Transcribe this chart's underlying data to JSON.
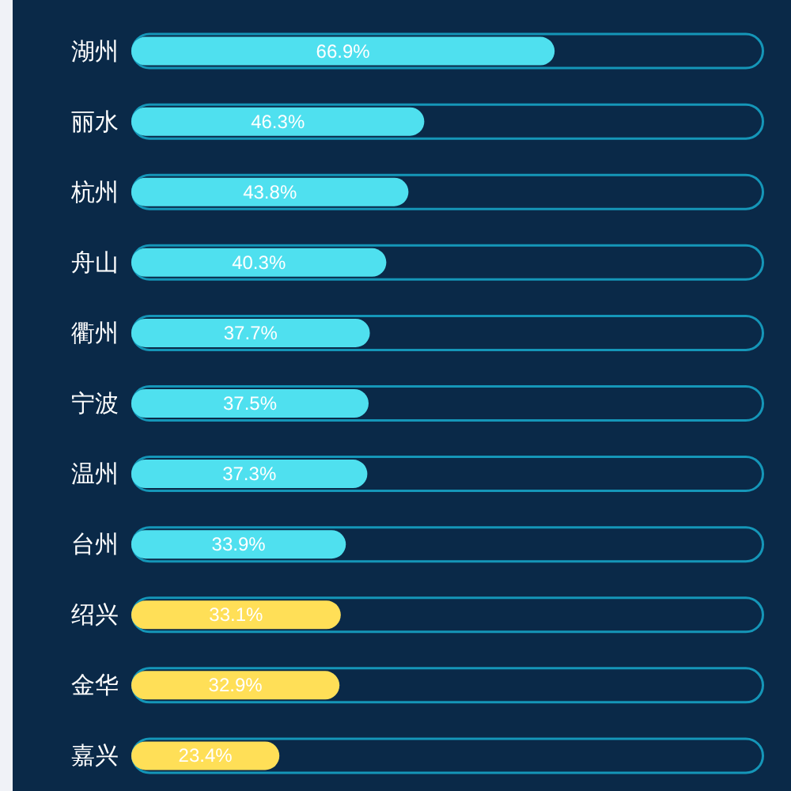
{
  "chart_data": {
    "type": "bar",
    "orientation": "horizontal",
    "categories": [
      "湖州",
      "丽水",
      "杭州",
      "舟山",
      "衢州",
      "宁波",
      "温州",
      "台州",
      "绍兴",
      "金华",
      "嘉兴"
    ],
    "series": [
      {
        "color": "#1596b8",
        "values": [
          100,
          100,
          100,
          100,
          100,
          100,
          100,
          100,
          100,
          100,
          100
        ]
      },
      {
        "values": [
          66.9,
          46.3,
          43.8,
          40.3,
          37.7,
          37.5,
          37.3,
          33.9,
          33.1,
          32.9,
          23.4
        ],
        "colors": [
          "#4fe0ef",
          "#4fe0ef",
          "#4fe0ef",
          "#4fe0ef",
          "#4fe0ef",
          "#4fe0ef",
          "#4fe0ef",
          "#4fe0ef",
          "#ffdf57",
          "#ffdf57",
          "#ffdf57"
        ],
        "value_labels": [
          "66.9%",
          "46.3%",
          "43.8%",
          "40.3%",
          "37.7%",
          "37.5%",
          "37.3%",
          "33.9%",
          "33.1%",
          "32.9%",
          "23.4%"
        ]
      }
    ],
    "xlim": [
      0,
      100
    ],
    "tick_labels": "y"
  }
}
